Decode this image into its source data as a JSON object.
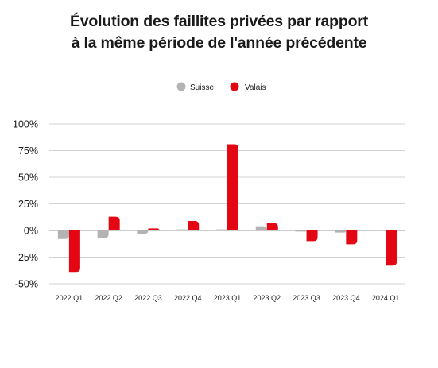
{
  "chart_data": {
    "type": "bar",
    "title_lines": [
      "Évolution des faillites privées par rapport",
      "à la même période de l'année précédente"
    ],
    "categories": [
      "2022 Q1",
      "2022 Q2",
      "2022 Q3",
      "2022 Q4",
      "2023 Q1",
      "2023 Q2",
      "2023 Q3",
      "2023 Q4",
      "2024 Q1"
    ],
    "series": [
      {
        "name": "Suisse",
        "color": "#b3b3b3",
        "values": [
          -8,
          -7,
          -3,
          1,
          1,
          4,
          -1,
          -2,
          0
        ]
      },
      {
        "name": "Valais",
        "color": "#e30613",
        "values": [
          -39,
          13,
          2,
          9,
          81,
          7,
          -10,
          -13,
          -33
        ]
      }
    ],
    "ylim": [
      -50,
      100
    ],
    "yticks": [
      100,
      75,
      50,
      25,
      0,
      -25,
      -50
    ],
    "ytick_labels": [
      "100%",
      "75%",
      "50%",
      "25%",
      "0%",
      "-25%",
      "-50%"
    ],
    "grid": true,
    "legend_position": "top-center",
    "xlabel": "",
    "ylabel": ""
  }
}
